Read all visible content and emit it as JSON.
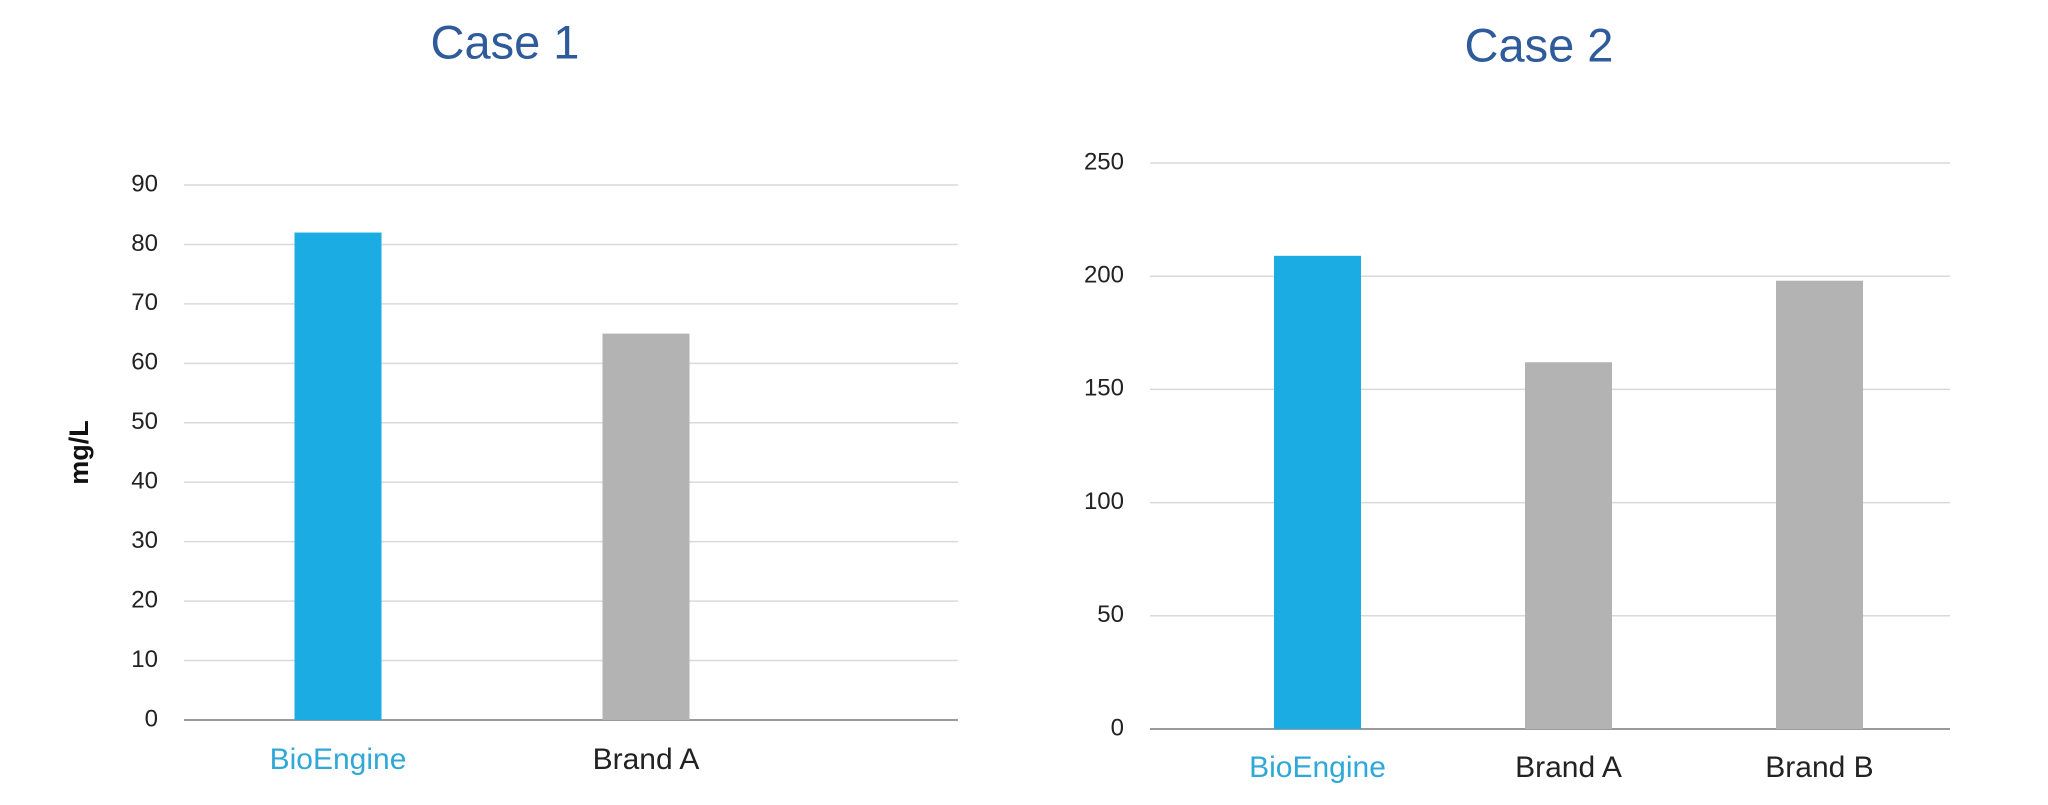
{
  "chart_data": [
    {
      "type": "bar",
      "title": "Case 1",
      "y_label": "mg/L",
      "categories": [
        "BioEngine",
        "Brand A"
      ],
      "values": [
        82,
        65
      ],
      "colors": [
        "#1aace2",
        "#b3b3b3"
      ],
      "category_label_colors": [
        "#2fa8d8",
        "#222222"
      ],
      "ylim": [
        0,
        90
      ],
      "yticks": [
        0,
        10,
        20,
        30,
        40,
        50,
        60,
        70,
        80,
        90
      ],
      "grid": true
    },
    {
      "type": "bar",
      "title": "Case 2",
      "categories": [
        "BioEngine",
        "Brand A",
        "Brand B"
      ],
      "values": [
        209,
        162,
        198
      ],
      "colors": [
        "#1aace2",
        "#b3b3b3",
        "#b3b3b3"
      ],
      "category_label_colors": [
        "#2fa8d8",
        "#222222",
        "#222222"
      ],
      "ylim": [
        0,
        250
      ],
      "yticks": [
        0,
        50,
        100,
        150,
        200,
        250
      ],
      "grid": true
    }
  ]
}
